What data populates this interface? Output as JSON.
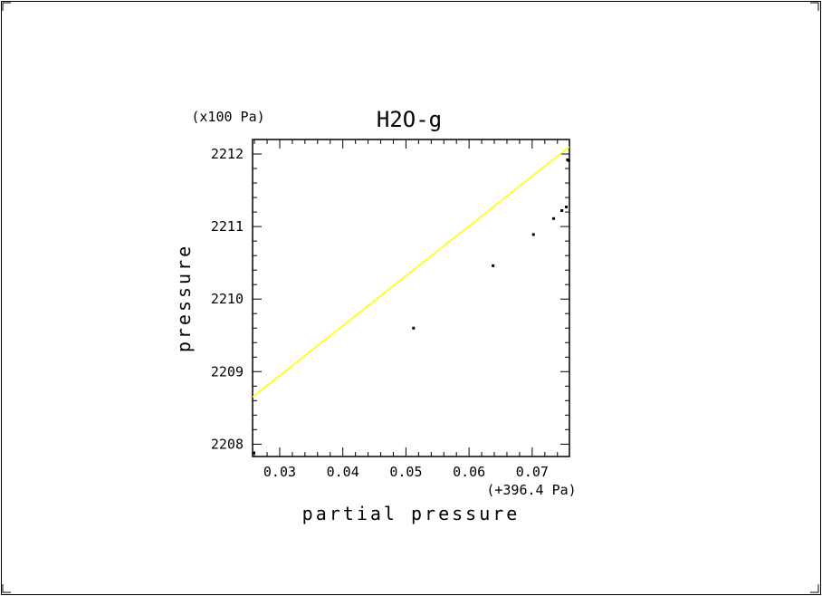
{
  "chart_data": {
    "type": "scatter",
    "title": "H2O-g",
    "xlabel": "partial pressure",
    "ylabel": "pressure",
    "x_offset_label": "(+396.4 Pa)",
    "y_scale_label": "(x100 Pa)",
    "x_ticks": [
      "0.03",
      "0.04",
      "0.05",
      "0.06",
      "0.07"
    ],
    "y_ticks": [
      "2208",
      "2209",
      "2210",
      "2211",
      "2212"
    ],
    "xlim": [
      0.0257,
      0.0759
    ],
    "ylim": [
      2207.83,
      2212.2
    ],
    "points": {
      "x": [
        0.0259,
        0.0512,
        0.0638,
        0.0702,
        0.0734,
        0.0747,
        0.0754,
        0.0756,
        0.0758
      ],
      "y": [
        2207.88,
        2209.6,
        2210.46,
        2210.89,
        2211.11,
        2211.22,
        2211.27,
        2211.92,
        2211.91
      ]
    },
    "line": {
      "x": [
        0.0257,
        0.0759
      ],
      "y": [
        2208.65,
        2212.1
      ]
    },
    "colors": {
      "line": "#ffff00",
      "points": "#000000",
      "axes": "#000000"
    },
    "grid": false,
    "legend": "none"
  }
}
